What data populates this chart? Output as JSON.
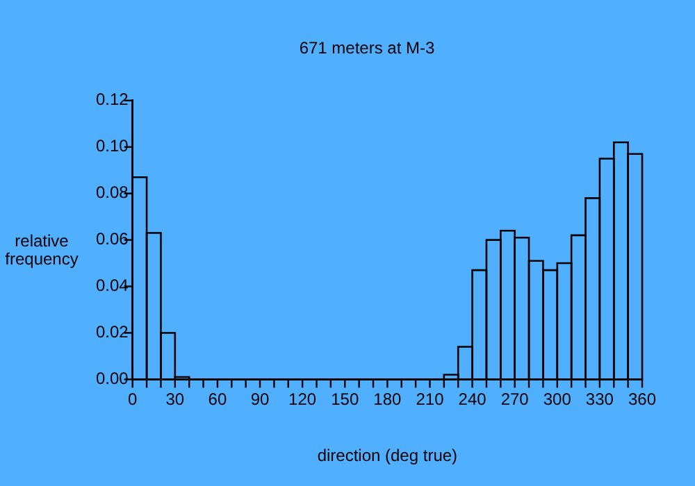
{
  "chart_data": {
    "type": "histogram",
    "title": "671 meters at M-3",
    "xlabel": "direction (deg true)",
    "ylabel": "relative frequency",
    "bins": [
      0,
      10,
      20,
      30,
      40,
      50,
      60,
      70,
      80,
      90,
      100,
      110,
      120,
      130,
      140,
      150,
      160,
      170,
      180,
      190,
      200,
      210,
      220,
      230,
      240,
      250,
      260,
      270,
      280,
      290,
      300,
      310,
      320,
      330,
      340,
      350,
      360
    ],
    "values": [
      0.087,
      0.063,
      0.02,
      0.001,
      0,
      0,
      0,
      0,
      0,
      0,
      0,
      0,
      0,
      0,
      0,
      0,
      0,
      0,
      0,
      0,
      0,
      0,
      0.002,
      0.014,
      0.047,
      0.06,
      0.064,
      0.061,
      0.051,
      0.047,
      0.05,
      0.062,
      0.078,
      0.095,
      0.102,
      0.097
    ],
    "color": "#000000",
    "xlim": [
      0,
      360
    ],
    "xticks": [
      0,
      {
        "value": 10,
        "label": null
      },
      {
        "value": 20,
        "label": null
      },
      30,
      {
        "value": 40,
        "label": null
      },
      {
        "value": 50,
        "label": null
      },
      60,
      {
        "value": 70,
        "label": null
      },
      {
        "value": 80,
        "label": null
      },
      90,
      {
        "value": 100,
        "label": null
      },
      {
        "value": 110,
        "label": null
      },
      120,
      {
        "value": 130,
        "label": null
      },
      {
        "value": 140,
        "label": null
      },
      150,
      {
        "value": 160,
        "label": null
      },
      {
        "value": 170,
        "label": null
      },
      180,
      {
        "value": 190,
        "label": null
      },
      {
        "value": 200,
        "label": null
      },
      210,
      {
        "value": 220,
        "label": null
      },
      {
        "value": 230,
        "label": null
      },
      240,
      {
        "value": 250,
        "label": null
      },
      {
        "value": 260,
        "label": null
      },
      270,
      {
        "value": 280,
        "label": null
      },
      {
        "value": 290,
        "label": null
      },
      300,
      {
        "value": 310,
        "label": null
      },
      {
        "value": 320,
        "label": null
      },
      330,
      {
        "value": 340,
        "label": null
      },
      {
        "value": 350,
        "label": null
      },
      360
    ],
    "ylim": [
      0,
      0.12
    ],
    "yticks": [
      {
        "value": 0,
        "label": "0.00"
      },
      {
        "value": 0.02,
        "label": "0.02"
      },
      {
        "value": 0.04,
        "label": "0.04"
      },
      {
        "value": 0.06,
        "label": "0.06"
      },
      {
        "value": 0.08,
        "label": "0.08"
      },
      {
        "value": 0.1,
        "label": "0.10"
      },
      {
        "value": 0.12,
        "label": "0.12"
      }
    ],
    "grid": false,
    "legend": false
  }
}
